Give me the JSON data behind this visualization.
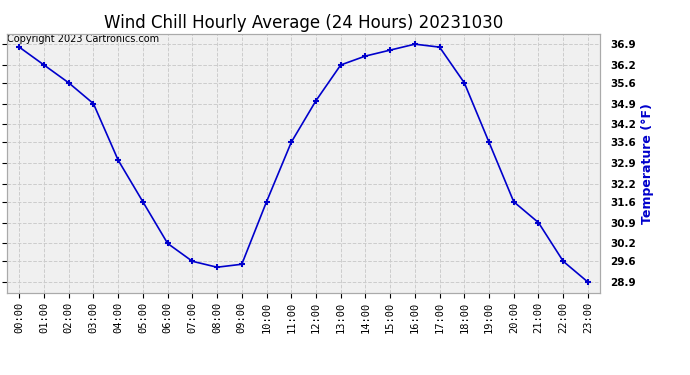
{
  "title": "Wind Chill Hourly Average (24 Hours) 20231030",
  "copyright": "Copyright 2023 Cartronics.com",
  "ylabel": "Temperature (°F)",
  "ylabel_color": "#0000cc",
  "hours": [
    "00:00",
    "01:00",
    "02:00",
    "03:00",
    "04:00",
    "05:00",
    "06:00",
    "07:00",
    "08:00",
    "09:00",
    "10:00",
    "11:00",
    "12:00",
    "13:00",
    "14:00",
    "15:00",
    "16:00",
    "17:00",
    "18:00",
    "19:00",
    "20:00",
    "21:00",
    "22:00",
    "23:00"
  ],
  "values": [
    36.8,
    36.2,
    35.6,
    34.9,
    33.0,
    31.6,
    30.2,
    29.6,
    29.4,
    29.5,
    31.6,
    33.6,
    35.0,
    36.2,
    36.5,
    36.7,
    36.9,
    36.8,
    35.6,
    33.6,
    31.6,
    30.9,
    29.6,
    28.9
  ],
  "line_color": "#0000cc",
  "marker": "+",
  "marker_size": 5,
  "marker_edge_width": 1.5,
  "line_width": 1.2,
  "ylim_min": 28.55,
  "ylim_max": 37.25,
  "yticks": [
    28.9,
    29.6,
    30.2,
    30.9,
    31.6,
    32.2,
    32.9,
    33.6,
    34.2,
    34.9,
    35.6,
    36.2,
    36.9
  ],
  "grid_color": "#cccccc",
  "background_color": "#ffffff",
  "plot_bg_color": "#f0f0f0",
  "title_fontsize": 12,
  "tick_fontsize": 7.5,
  "copyright_fontsize": 7,
  "ylabel_fontsize": 9
}
